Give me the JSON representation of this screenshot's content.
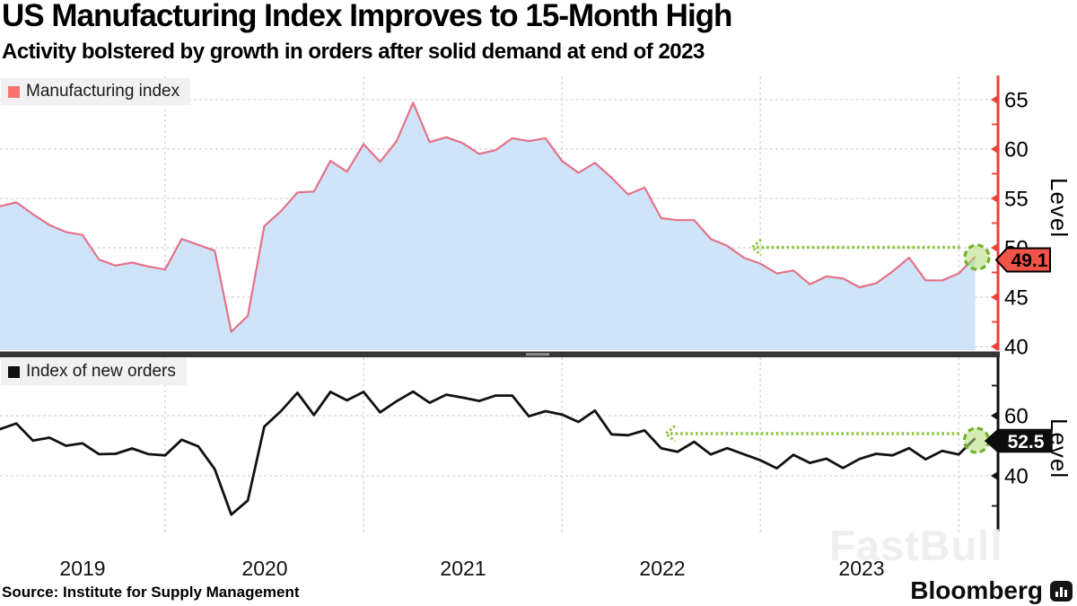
{
  "header": {
    "title": "US Manufacturing Index Improves to 15-Month High",
    "subtitle": "Activity bolstered by growth in orders after solid demand at end of 2023"
  },
  "x_axis": {
    "years": [
      "2019",
      "2020",
      "2021",
      "2022",
      "2023"
    ]
  },
  "footer": {
    "source": "Source: Institute for Supply Management",
    "brand": "Bloomberg"
  },
  "watermark": "FastBull",
  "colors": {
    "top_line": "#e57288",
    "top_fill": "#cfe4f9",
    "top_axis": "#ef4136",
    "top_callout_fill": "#f25449",
    "top_legend_swatch": "#f8736f",
    "bottom_line": "#111111",
    "bottom_axis": "#111111",
    "bottom_callout_fill": "#0d0d0d",
    "annotation_green": "#8cc63e",
    "gridline": "#c9c9c9",
    "divider": "#363636"
  },
  "chart_data": [
    {
      "type": "area",
      "name": "Manufacturing index",
      "legend": "Manufacturing index",
      "x_start": "2019-01",
      "x_end": "2024-01",
      "frequency": "monthly",
      "values": [
        55.5,
        54.2,
        54.6,
        53.4,
        52.3,
        51.6,
        51.3,
        48.8,
        48.2,
        48.5,
        48.1,
        47.8,
        50.9,
        50.3,
        49.7,
        41.5,
        43.1,
        52.2,
        53.7,
        55.6,
        55.7,
        58.8,
        57.7,
        60.5,
        58.7,
        60.8,
        64.7,
        60.7,
        61.2,
        60.6,
        59.5,
        59.9,
        61.1,
        60.8,
        61.1,
        58.8,
        57.6,
        58.6,
        57.1,
        55.4,
        56.1,
        53.0,
        52.8,
        52.8,
        50.9,
        50.2,
        49.0,
        48.4,
        47.4,
        47.7,
        46.3,
        47.1,
        46.9,
        46.0,
        46.4,
        47.6,
        49.0,
        46.7,
        46.7,
        47.4,
        49.1
      ],
      "last_value_label": "49.1",
      "ylabel": "Level",
      "yticks_labeled": [
        65,
        60,
        55,
        50,
        45,
        40
      ],
      "yticks_minor": [
        62.5,
        57.5,
        52.5,
        47.5,
        42.5
      ],
      "ylim_implied": [
        40,
        67.5
      ],
      "grid": true,
      "legend_position": "top-left"
    },
    {
      "type": "line",
      "name": "Index of new orders",
      "legend": "Index of new orders",
      "x_start": "2019-01",
      "x_end": "2024-01",
      "frequency": "monthly",
      "values": [
        58.2,
        55.5,
        57.4,
        51.7,
        52.7,
        50.0,
        50.8,
        47.2,
        47.3,
        49.1,
        47.2,
        46.8,
        52.0,
        49.8,
        42.2,
        27.1,
        31.8,
        56.4,
        61.5,
        67.6,
        60.2,
        67.9,
        65.1,
        67.9,
        61.1,
        64.8,
        68.0,
        64.3,
        67.0,
        66.0,
        64.9,
        66.7,
        66.7,
        59.8,
        61.5,
        60.4,
        57.9,
        61.7,
        53.8,
        53.5,
        55.1,
        49.2,
        48.0,
        51.3,
        47.1,
        49.2,
        47.2,
        45.2,
        42.5,
        47.0,
        44.3,
        45.7,
        42.6,
        45.6,
        47.3,
        46.8,
        49.2,
        45.5,
        48.3,
        47.1,
        52.5
      ],
      "last_value_label": "52.5",
      "ylabel": "Level",
      "yticks_labeled": [
        60,
        40
      ],
      "yticks_minor": [
        70,
        50,
        30
      ],
      "ylim_implied": [
        26,
        79
      ],
      "grid": true,
      "legend_position": "top-left"
    }
  ]
}
